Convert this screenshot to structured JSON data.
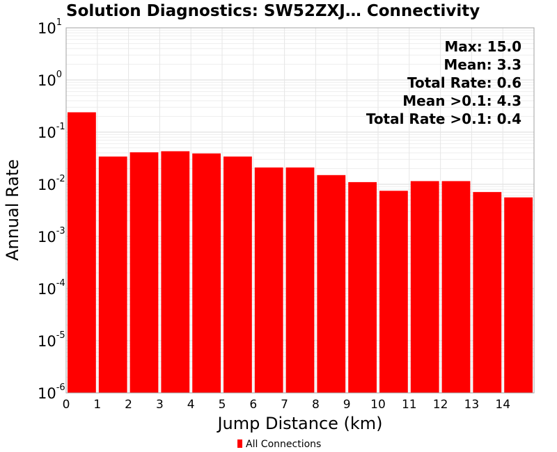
{
  "chart_data": {
    "type": "bar",
    "title": "Solution Diagnostics: SW52ZXJ… Connectivity",
    "xlabel": "Jump Distance (km)",
    "ylabel": "Annual Rate",
    "y_scale": "log",
    "ylim": [
      1e-06,
      10
    ],
    "xlim": [
      0,
      15
    ],
    "x_ticks": [
      "0",
      "1",
      "2",
      "3",
      "4",
      "5",
      "6",
      "7",
      "8",
      "9",
      "10",
      "11",
      "12",
      "13",
      "14"
    ],
    "y_ticks": [
      {
        "base": "10",
        "exp": "1"
      },
      {
        "base": "10",
        "exp": "0"
      },
      {
        "base": "10",
        "exp": "-1"
      },
      {
        "base": "10",
        "exp": "-2"
      },
      {
        "base": "10",
        "exp": "-3"
      },
      {
        "base": "10",
        "exp": "-4"
      },
      {
        "base": "10",
        "exp": "-5"
      },
      {
        "base": "10",
        "exp": "-6"
      }
    ],
    "grid": true,
    "series": [
      {
        "name": "All Connections",
        "color": "#ff0000",
        "bins": [
          [
            0,
            1
          ],
          [
            1,
            2
          ],
          [
            2,
            3
          ],
          [
            3,
            4
          ],
          [
            4,
            5
          ],
          [
            5,
            6
          ],
          [
            6,
            7
          ],
          [
            7,
            8
          ],
          [
            8,
            9
          ],
          [
            9,
            10
          ],
          [
            10,
            11
          ],
          [
            11,
            12
          ],
          [
            12,
            13
          ],
          [
            13,
            14
          ],
          [
            14,
            15
          ]
        ],
        "values": [
          0.24,
          0.034,
          0.041,
          0.043,
          0.039,
          0.034,
          0.021,
          0.021,
          0.015,
          0.011,
          0.0075,
          0.0115,
          0.0115,
          0.0071,
          0.0056
        ]
      }
    ],
    "annotations": [
      "Max: 15.0",
      "Mean: 3.3",
      "Total Rate: 0.6",
      "Mean >0.1: 4.3",
      "Total Rate >0.1: 0.4"
    ],
    "legend": {
      "position": "bottom-center",
      "label": "All Connections"
    }
  }
}
